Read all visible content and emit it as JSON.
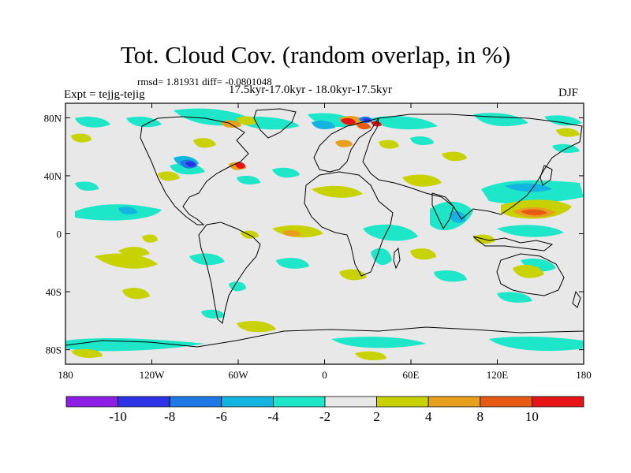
{
  "title": "Tot. Cloud Cov. (random overlap, in %)",
  "stats": "rmsd= 1.81931 diff= -0.0801048",
  "period": "17.5kyr-17.0kyr - 18.0kyr-17.5kyr",
  "experiment": "Expt = tejjg-tejig",
  "season": "DJF",
  "map": {
    "x_ticks": [
      {
        "lon": -180,
        "label": "180"
      },
      {
        "lon": -120,
        "label": "120W"
      },
      {
        "lon": -60,
        "label": "60W"
      },
      {
        "lon": 0,
        "label": "0"
      },
      {
        "lon": 60,
        "label": "60E"
      },
      {
        "lon": 120,
        "label": "120E"
      },
      {
        "lon": 180,
        "label": "180"
      }
    ],
    "y_ticks": [
      {
        "lat": 80,
        "label": "80N"
      },
      {
        "lat": 40,
        "label": "40N"
      },
      {
        "lat": 0,
        "label": "0"
      },
      {
        "lat": -40,
        "label": "40S"
      },
      {
        "lat": -80,
        "label": "80S"
      }
    ],
    "lon_range": [
      -180,
      180
    ],
    "lat_range": [
      -90,
      90
    ]
  },
  "colorbar": {
    "levels": [
      "-10",
      "-8",
      "-6",
      "-4",
      "-2",
      "2",
      "4",
      "8",
      "10"
    ],
    "colors": [
      "#8c1ee6",
      "#2d32e6",
      "#1e78e6",
      "#14b4e0",
      "#1ee6c8",
      "#e8e8e8",
      "#c8d200",
      "#e6a01e",
      "#e65a14",
      "#e61414"
    ]
  },
  "colors": {
    "background_field": "#e8e8e8",
    "coastline": "#000000"
  }
}
